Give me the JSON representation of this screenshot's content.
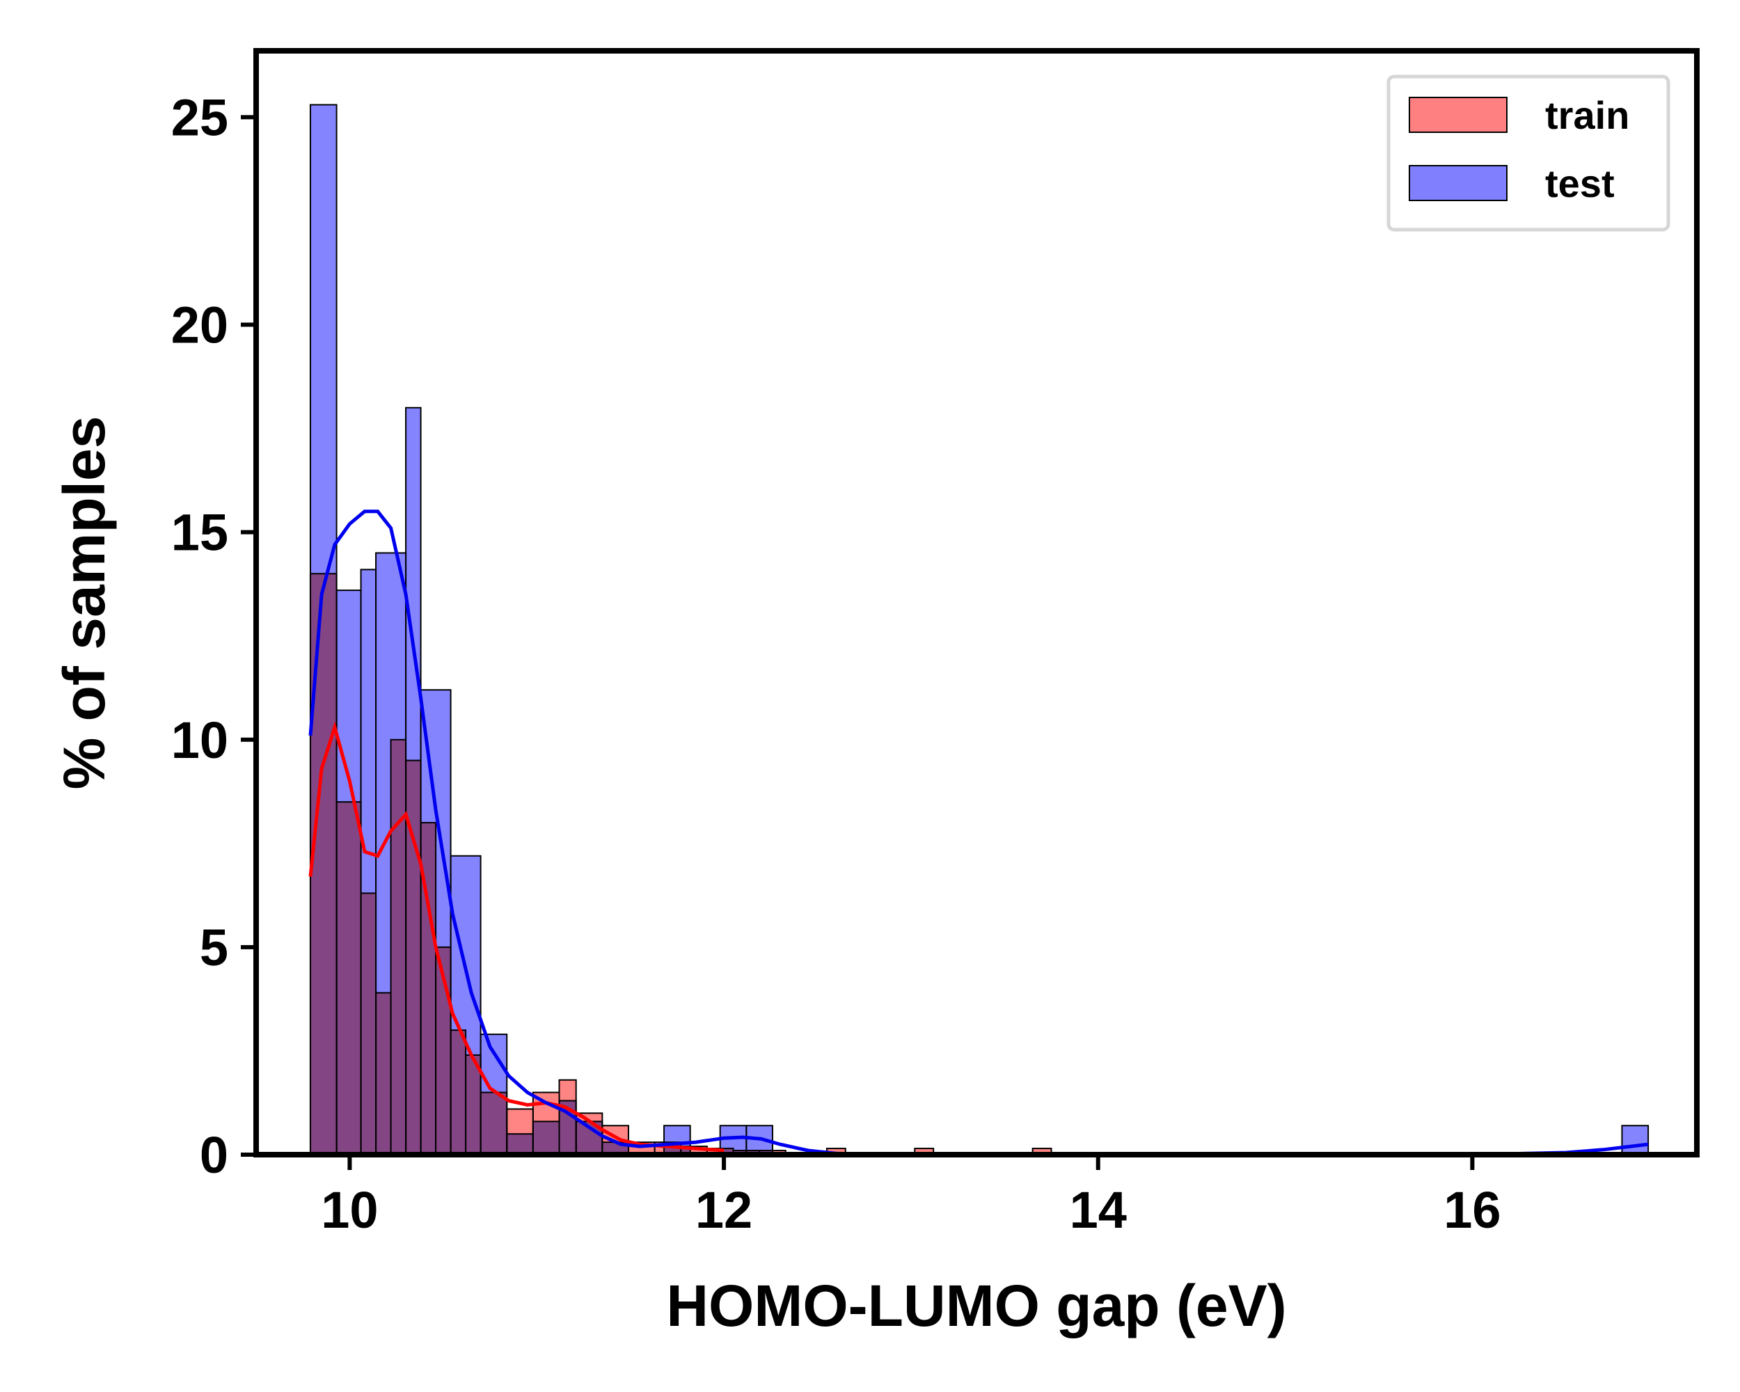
{
  "chart_data": {
    "type": "histogram",
    "title": "",
    "xlabel": "HOMO-LUMO gap (eV)",
    "ylabel": "% of samples",
    "xlim": [
      9.5,
      17.2
    ],
    "ylim": [
      0,
      26.6
    ],
    "xticks": [
      10,
      12,
      14,
      16
    ],
    "yticks": [
      0,
      5,
      10,
      15,
      20,
      25
    ],
    "grid": false,
    "legend_position": "top-right",
    "series": [
      {
        "name": "train",
        "color": "#ff0000",
        "fill": "#ff8080",
        "bins": [
          [
            9.79,
            9.93,
            14.0
          ],
          [
            9.93,
            10.06,
            8.5
          ],
          [
            10.06,
            10.14,
            6.3
          ],
          [
            10.14,
            10.22,
            3.9
          ],
          [
            10.22,
            10.3,
            10.0
          ],
          [
            10.3,
            10.38,
            9.5
          ],
          [
            10.38,
            10.46,
            8.0
          ],
          [
            10.46,
            10.54,
            5.0
          ],
          [
            10.54,
            10.62,
            3.0
          ],
          [
            10.62,
            10.7,
            2.4
          ],
          [
            10.7,
            10.84,
            1.5
          ],
          [
            10.84,
            10.98,
            1.1
          ],
          [
            10.98,
            11.12,
            1.5
          ],
          [
            11.12,
            11.21,
            1.8
          ],
          [
            11.21,
            11.35,
            1.0
          ],
          [
            11.35,
            11.49,
            0.7
          ],
          [
            11.49,
            11.63,
            0.3
          ],
          [
            11.63,
            11.77,
            0.3
          ],
          [
            11.77,
            11.91,
            0.2
          ],
          [
            11.91,
            12.05,
            0.15
          ],
          [
            12.05,
            12.19,
            0.1
          ],
          [
            12.19,
            12.33,
            0.1
          ],
          [
            12.55,
            12.65,
            0.15
          ],
          [
            13.02,
            13.12,
            0.15
          ],
          [
            13.65,
            13.75,
            0.15
          ]
        ],
        "kde": {
          "x": [
            9.79,
            9.85,
            9.92,
            10.0,
            10.08,
            10.15,
            10.22,
            10.3,
            10.38,
            10.46,
            10.55,
            10.65,
            10.75,
            10.85,
            10.95,
            11.05,
            11.15,
            11.25,
            11.35,
            11.45,
            11.55,
            11.7,
            11.85,
            12.0
          ],
          "y": [
            6.7,
            9.3,
            10.3,
            9.0,
            7.3,
            7.2,
            7.8,
            8.2,
            7.0,
            5.0,
            3.4,
            2.4,
            1.6,
            1.3,
            1.2,
            1.25,
            1.15,
            0.9,
            0.6,
            0.35,
            0.25,
            0.2,
            0.15,
            0.1
          ]
        }
      },
      {
        "name": "test",
        "color": "#0000ee",
        "fill": "#8080ff",
        "bins": [
          [
            9.79,
            9.93,
            25.3
          ],
          [
            9.93,
            10.06,
            13.6
          ],
          [
            10.06,
            10.14,
            14.1
          ],
          [
            10.14,
            10.3,
            14.5
          ],
          [
            10.3,
            10.38,
            18.0
          ],
          [
            10.38,
            10.54,
            11.2
          ],
          [
            10.54,
            10.7,
            7.2
          ],
          [
            10.7,
            10.84,
            2.9
          ],
          [
            10.84,
            10.98,
            0.5
          ],
          [
            10.98,
            11.12,
            0.8
          ],
          [
            11.12,
            11.21,
            1.3
          ],
          [
            11.21,
            11.35,
            0.8
          ],
          [
            11.35,
            11.49,
            0.3
          ],
          [
            11.68,
            11.82,
            0.7
          ],
          [
            11.98,
            12.12,
            0.7
          ],
          [
            12.12,
            12.26,
            0.7
          ],
          [
            16.8,
            16.94,
            0.7
          ]
        ],
        "kde": {
          "x": [
            9.79,
            9.85,
            9.92,
            10.0,
            10.08,
            10.15,
            10.22,
            10.3,
            10.38,
            10.46,
            10.55,
            10.65,
            10.75,
            10.85,
            10.95,
            11.05,
            11.15,
            11.25,
            11.35,
            11.45,
            11.55,
            11.7,
            11.85,
            12.0,
            12.1,
            12.2,
            12.3,
            12.45,
            12.6,
            12.8,
            13.2,
            14.0,
            15.0,
            16.0,
            16.5,
            16.7,
            16.94
          ],
          "y": [
            10.1,
            13.5,
            14.7,
            15.2,
            15.5,
            15.5,
            15.1,
            13.5,
            11.0,
            8.3,
            5.8,
            3.9,
            2.6,
            1.9,
            1.5,
            1.25,
            1.05,
            0.75,
            0.45,
            0.25,
            0.2,
            0.25,
            0.3,
            0.4,
            0.42,
            0.38,
            0.25,
            0.1,
            0.03,
            0.0,
            0.0,
            0.0,
            0.0,
            0.0,
            0.05,
            0.12,
            0.25
          ]
        }
      }
    ]
  }
}
